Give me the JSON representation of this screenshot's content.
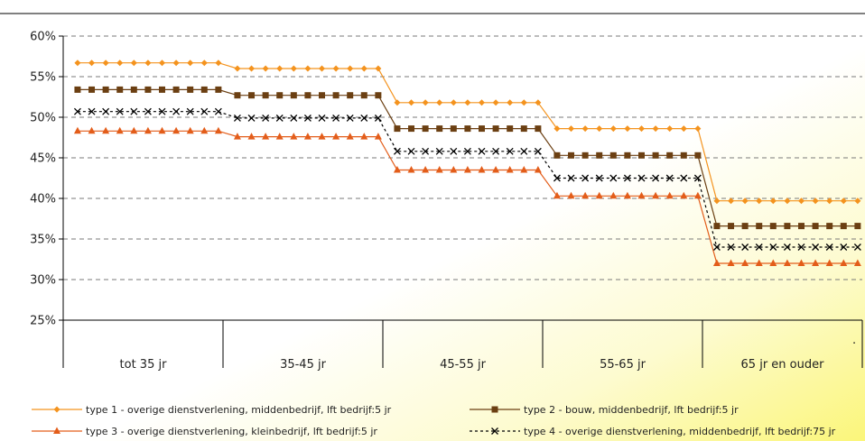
{
  "chart_data": {
    "type": "line",
    "categories": [
      "tot 35 jr",
      "35-45 jr",
      "45-55 jr",
      "55-65 jr",
      "65 jr en ouder"
    ],
    "ylim": [
      0.25,
      0.6
    ],
    "y_ticks": [
      "60%",
      "55%",
      "50%",
      "45%",
      "40%",
      "35%",
      "30%",
      "25%"
    ],
    "points_per_category": 11,
    "grid": true,
    "legend_position": "bottom",
    "series": [
      {
        "name": "type 1 - overige dienstverlening, middenbedrijf, lft bedrijf:5 jr",
        "values": [
          0.567,
          0.56,
          0.518,
          0.486,
          0.397
        ],
        "color": "#f4931e",
        "marker": "diamond"
      },
      {
        "name": "type 2 - bouw, middenbedrijf, lft bedrijf:5 jr",
        "values": [
          0.534,
          0.527,
          0.486,
          0.453,
          0.366
        ],
        "color": "#6b3f12",
        "marker": "square"
      },
      {
        "name": "type 3 - overige dienstverlening, kleinbedrijf, lft bedrijf:5 jr",
        "values": [
          0.483,
          0.476,
          0.435,
          0.403,
          0.32
        ],
        "color": "#e35d1a",
        "marker": "triangle"
      },
      {
        "name": "type 4 - overige dienstverlening, middenbedrijf, lft bedrijf:75 jr",
        "values": [
          0.507,
          0.499,
          0.458,
          0.425,
          0.34
        ],
        "color": "#000000",
        "marker": "x",
        "dashed": true
      }
    ]
  }
}
